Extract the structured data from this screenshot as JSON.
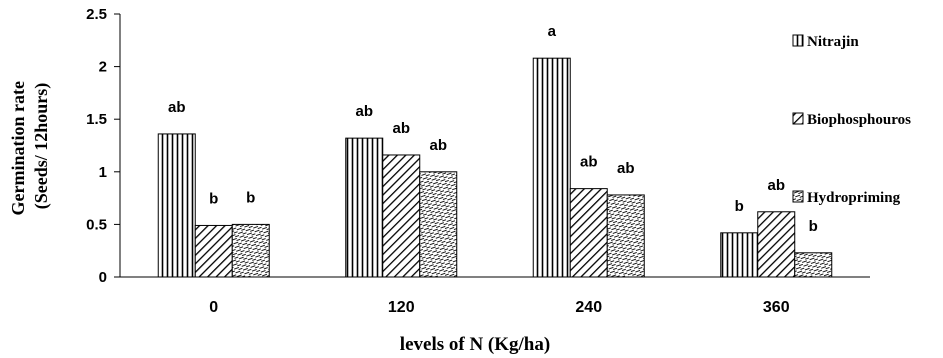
{
  "chart_data": {
    "type": "bar",
    "title": "",
    "xlabel": "levels of N (Kg/ha)",
    "ylabel_line1": "Germination rate",
    "ylabel_line2": "(Seeds/ 12hours)",
    "categories": [
      "0",
      "120",
      "240",
      "360"
    ],
    "ylim": [
      0,
      2.5
    ],
    "yticks": [
      "0",
      "0.5",
      "1",
      "1.5",
      "2",
      "2.5"
    ],
    "grid": false,
    "legend_position": "right",
    "series": [
      {
        "name": "Nitrajin",
        "pattern": "vertical-lines",
        "values": [
          1.36,
          1.32,
          2.08,
          0.42
        ],
        "labels": [
          "ab",
          "ab",
          "a",
          "b"
        ]
      },
      {
        "name": "Biophosphouros",
        "pattern": "diagonal-lines",
        "values": [
          0.49,
          1.16,
          0.84,
          0.62
        ],
        "labels": [
          "b",
          "ab",
          "ab",
          "ab"
        ]
      },
      {
        "name": "Hydropriming",
        "pattern": "dashed-diagonal",
        "values": [
          0.5,
          1.0,
          0.78,
          0.23
        ],
        "labels": [
          "b",
          "ab",
          "ab",
          "b"
        ]
      }
    ]
  },
  "colors": {
    "ink": "#000000",
    "background": "#ffffff"
  }
}
